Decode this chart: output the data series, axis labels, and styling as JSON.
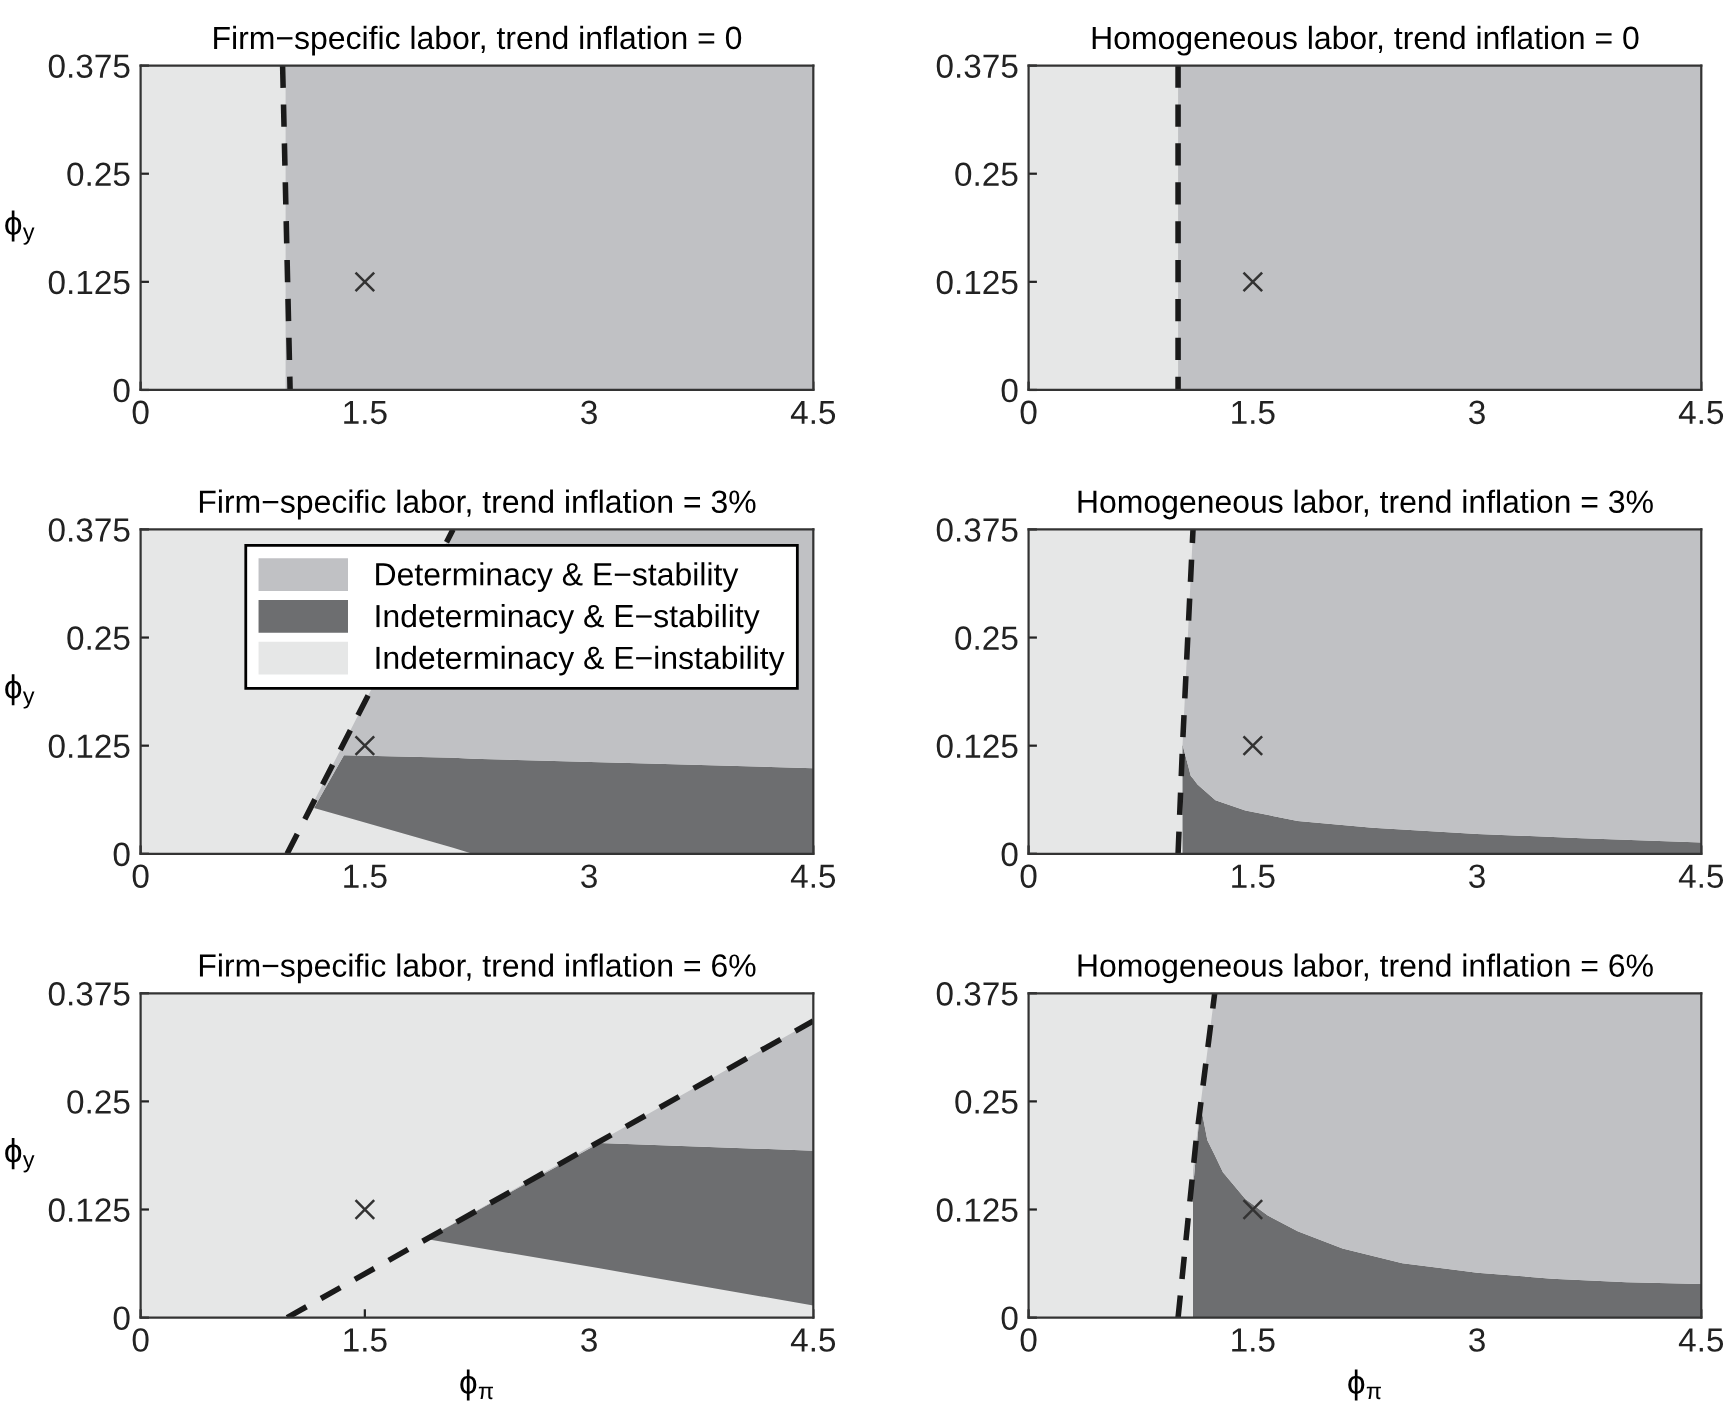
{
  "chart_data": [
    {
      "type": "area",
      "title": "Firm−specific labor, trend inflation = 0",
      "ylabel": "ϕ$_{y}$",
      "xlim": [
        0,
        4.5
      ],
      "ylim": [
        0,
        0.375
      ],
      "xticks": [
        0,
        1.5,
        3,
        4.5
      ],
      "yticks": [
        0,
        0.125,
        0.25,
        0.375
      ],
      "bands": [
        {
          "axis": "y",
          "from": 0,
          "to": 0.375,
          "color": "#e6e7e7"
        }
      ],
      "x": [
        0.97,
        4.5
      ],
      "series": [
        {
          "color": "#c0c1c4",
          "values": [
            0.375,
            0.375
          ]
        },
        {
          "type": "line",
          "color": "#1a1a1a",
          "line_style": "dashed",
          "x": [
            0.95,
            1.0
          ],
          "values": [
            0.375,
            0
          ]
        },
        {
          "type": "scatter",
          "color": "#333333",
          "marker": "cross",
          "x": [
            1.5
          ],
          "values": [
            0.125
          ]
        }
      ]
    },
    {
      "type": "area",
      "title": "Homogeneous labor, trend inflation = 0",
      "xlim": [
        0,
        4.5
      ],
      "ylim": [
        0,
        0.375
      ],
      "xticks": [
        0,
        1.5,
        3,
        4.5
      ],
      "yticks": [
        0,
        0.125,
        0.25,
        0.375
      ],
      "bands": [
        {
          "axis": "y",
          "from": 0,
          "to": 0.375,
          "color": "#e6e7e7"
        }
      ],
      "x": [
        1.0,
        4.5
      ],
      "series": [
        {
          "color": "#c0c1c4",
          "values": [
            0.375,
            0.375
          ]
        },
        {
          "type": "line",
          "color": "#1a1a1a",
          "line_style": "dashed",
          "x": [
            1.0,
            1.0
          ],
          "values": [
            0.375,
            0
          ]
        },
        {
          "type": "scatter",
          "color": "#333333",
          "marker": "cross",
          "x": [
            1.5
          ],
          "values": [
            0.125
          ]
        }
      ]
    },
    {
      "type": "area",
      "stacked": true,
      "title": "Firm−specific labor, trend inflation = 3%",
      "ylabel": "ϕ$_{y}$",
      "xlim": [
        0,
        4.5
      ],
      "ylim": [
        0,
        0.375
      ],
      "xticks": [
        0,
        1.5,
        3,
        4.5
      ],
      "yticks": [
        0,
        0.125,
        0.25,
        0.375
      ],
      "legend": "top right",
      "bands": [
        {
          "axis": "y",
          "from": 0,
          "to": 0.375,
          "color": "#e6e7e7",
          "label": "Indeterminacy & E−instability"
        }
      ],
      "x": [
        1.16,
        1.36,
        2.09,
        2.22,
        4.5
      ],
      "series": [
        {
          "color": "#e6e7e7",
          "values": [
            0.053,
            0.043,
            0.007,
            0,
            0
          ]
        },
        {
          "name": "Indeterminacy & E−stability",
          "color": "#6d6e70",
          "values": [
            0,
            0.071,
            0.104,
            0.11,
            0.099
          ]
        },
        {
          "name": "Determinacy & E−stability",
          "color": "#c0c1c4",
          "values": [
            0.008,
            0.014,
            0.264,
            0.265,
            0.276
          ]
        },
        {
          "type": "line",
          "color": "#1a1a1a",
          "line_style": "dashed",
          "x": [
            0.98,
            2.09
          ],
          "values": [
            0,
            0.375
          ]
        },
        {
          "type": "scatter",
          "color": "#333333",
          "marker": "cross",
          "x": [
            1.5
          ],
          "values": [
            0.125
          ]
        }
      ]
    },
    {
      "type": "area",
      "stacked": true,
      "title": "Homogeneous labor, trend inflation = 3%",
      "xlim": [
        0,
        4.5
      ],
      "ylim": [
        0,
        0.375
      ],
      "xticks": [
        0,
        1.5,
        3,
        4.5
      ],
      "yticks": [
        0,
        0.125,
        0.25,
        0.375
      ],
      "bands": [
        {
          "axis": "y",
          "from": 0,
          "to": 0.375,
          "color": "#e6e7e7"
        }
      ],
      "x": [
        1.03,
        1.07,
        1.085,
        1.1,
        1.13,
        1.25,
        1.45,
        1.8,
        2.3,
        3,
        3.7,
        4.5
      ],
      "series": [
        {
          "color": "#6d6e70",
          "values": [
            0.126,
            0.1,
            0.09,
            0.087,
            0.08,
            0.062,
            0.05,
            0.038,
            0.03,
            0.023,
            0.018,
            0.013
          ]
        },
        {
          "color": "#c0c1c4",
          "values": [
            0,
            0.168,
            0.231,
            0.288,
            0.295,
            0.313,
            0.325,
            0.337,
            0.345,
            0.352,
            0.357,
            0.362
          ]
        },
        {
          "type": "line",
          "color": "#1a1a1a",
          "line_style": "dashed",
          "x": [
            1.0,
            1.03,
            1.1
          ],
          "values": [
            0,
            0.126,
            0.375
          ]
        },
        {
          "type": "scatter",
          "color": "#333333",
          "marker": "cross",
          "x": [
            1.5
          ],
          "values": [
            0.125
          ]
        }
      ]
    },
    {
      "type": "area",
      "stacked": true,
      "title": "Firm−specific labor, trend inflation = 6%",
      "xlabel": "ϕ$_{π}$",
      "ylabel": "ϕ$_{y}$",
      "xlim": [
        0,
        4.5
      ],
      "ylim": [
        0,
        0.375
      ],
      "xticks": [
        0,
        1.5,
        3,
        4.5
      ],
      "yticks": [
        0,
        0.125,
        0.25,
        0.375
      ],
      "bands": [
        {
          "axis": "y",
          "from": 0,
          "to": 0.375,
          "color": "#e6e7e7"
        }
      ],
      "x": [
        1.91,
        3.07,
        4.5
      ],
      "series": [
        {
          "color": "#e6e7e7",
          "values": [
            0.091,
            0.057,
            0.014
          ]
        },
        {
          "color": "#6d6e70",
          "values": [
            0,
            0.145,
            0.179
          ]
        },
        {
          "color": "#c0c1c4",
          "values": [
            0,
            0.002,
            0.15
          ]
        },
        {
          "type": "line",
          "color": "#1a1a1a",
          "line_style": "dashed",
          "x": [
            0.98,
            4.5
          ],
          "values": [
            0,
            0.343
          ]
        },
        {
          "type": "scatter",
          "color": "#333333",
          "marker": "cross",
          "x": [
            1.5
          ],
          "values": [
            0.125
          ]
        }
      ]
    },
    {
      "type": "area",
      "stacked": true,
      "title": "Homogeneous labor, trend inflation = 6%",
      "xlabel": "ϕ$_{π}$",
      "xlim": [
        0,
        4.5
      ],
      "ylim": [
        0,
        0.375
      ],
      "xticks": [
        0,
        1.5,
        3,
        4.5
      ],
      "yticks": [
        0,
        0.125,
        0.25,
        0.375
      ],
      "bands": [
        {
          "axis": "y",
          "from": 0,
          "to": 0.375,
          "color": "#e6e7e7"
        }
      ],
      "x": [
        1.1,
        1.15,
        1.196,
        1.245,
        1.3,
        1.45,
        1.6,
        1.8,
        2.1,
        2.5,
        3,
        3.5,
        4,
        4.5
      ],
      "series": [
        {
          "color": "#6d6e70",
          "values": [
            0.15,
            0.246,
            0.205,
            0.188,
            0.168,
            0.137,
            0.118,
            0.1,
            0.08,
            0.063,
            0.052,
            0.045,
            0.041,
            0.039
          ]
        },
        {
          "color": "#c0c1c4",
          "values": [
            0.02,
            0,
            0.103,
            0.187,
            0.207,
            0.238,
            0.257,
            0.275,
            0.295,
            0.312,
            0.323,
            0.33,
            0.334,
            0.336
          ]
        },
        {
          "type": "line",
          "color": "#1a1a1a",
          "line_style": "dashed",
          "x": [
            1.0,
            1.12,
            1.245
          ],
          "values": [
            0,
            0.204,
            0.375
          ]
        },
        {
          "type": "scatter",
          "color": "#333333",
          "marker": "cross",
          "x": [
            1.5
          ],
          "values": [
            0.125
          ]
        }
      ]
    }
  ]
}
